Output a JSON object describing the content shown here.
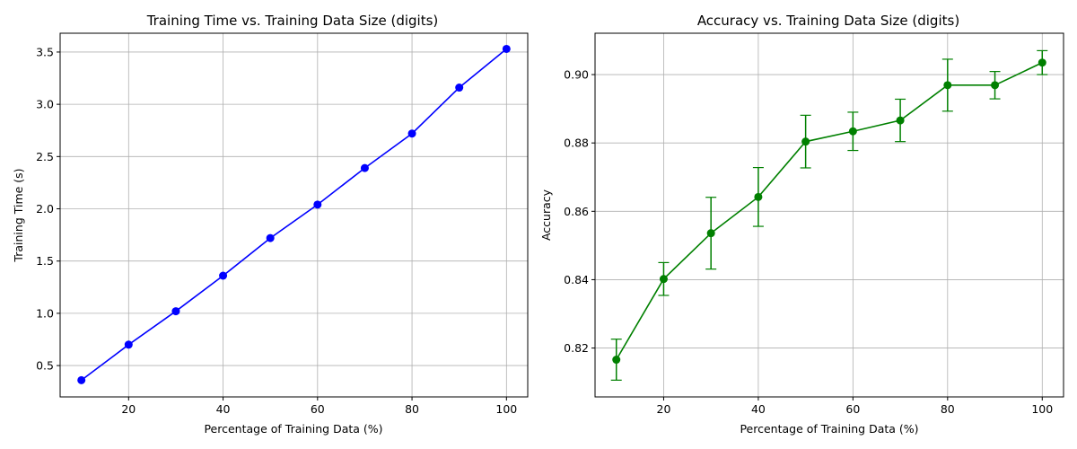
{
  "chart_data": [
    {
      "type": "line",
      "title": "Training Time vs. Training Data Size (digits)",
      "xlabel": "Percentage of Training Data (%)",
      "ylabel": "Training Time (s)",
      "xlim": [
        5.5,
        104.5
      ],
      "ylim": [
        0.2,
        3.68
      ],
      "xticks": [
        20,
        40,
        60,
        80,
        100
      ],
      "yticks": [
        0.5,
        1.0,
        1.5,
        2.0,
        2.5,
        3.0,
        3.5
      ],
      "ytick_labels": [
        "0.5",
        "1.0",
        "1.5",
        "2.0",
        "2.5",
        "3.0",
        "3.5"
      ],
      "grid": true,
      "series": [
        {
          "color": "#0000ff",
          "marker": "circle",
          "x": [
            10,
            20,
            30,
            40,
            50,
            60,
            70,
            80,
            90,
            100
          ],
          "y": [
            0.36,
            0.7,
            1.02,
            1.36,
            1.72,
            2.04,
            2.39,
            2.72,
            3.16,
            3.53
          ]
        }
      ]
    },
    {
      "type": "line",
      "title": "Accuracy vs. Training Data Size (digits)",
      "xlabel": "Percentage of Training Data (%)",
      "ylabel": "Accuracy",
      "xlim": [
        5.5,
        104.5
      ],
      "ylim": [
        0.8057,
        0.9121
      ],
      "xticks": [
        20,
        40,
        60,
        80,
        100
      ],
      "yticks": [
        0.82,
        0.84,
        0.86,
        0.88,
        0.9
      ],
      "ytick_labels": [
        "0.82",
        "0.84",
        "0.86",
        "0.88",
        "0.90"
      ],
      "grid": true,
      "series": [
        {
          "color": "#008000",
          "marker": "circle",
          "error_bars": true,
          "x": [
            10,
            20,
            30,
            40,
            50,
            60,
            70,
            80,
            90,
            100
          ],
          "y": [
            0.8166,
            0.8402,
            0.8536,
            0.8642,
            0.8804,
            0.8834,
            0.8866,
            0.8969,
            0.8969,
            0.9035
          ],
          "err": [
            0.006,
            0.0048,
            0.0105,
            0.0086,
            0.0077,
            0.0056,
            0.0062,
            0.0076,
            0.004,
            0.0035
          ]
        }
      ]
    }
  ]
}
